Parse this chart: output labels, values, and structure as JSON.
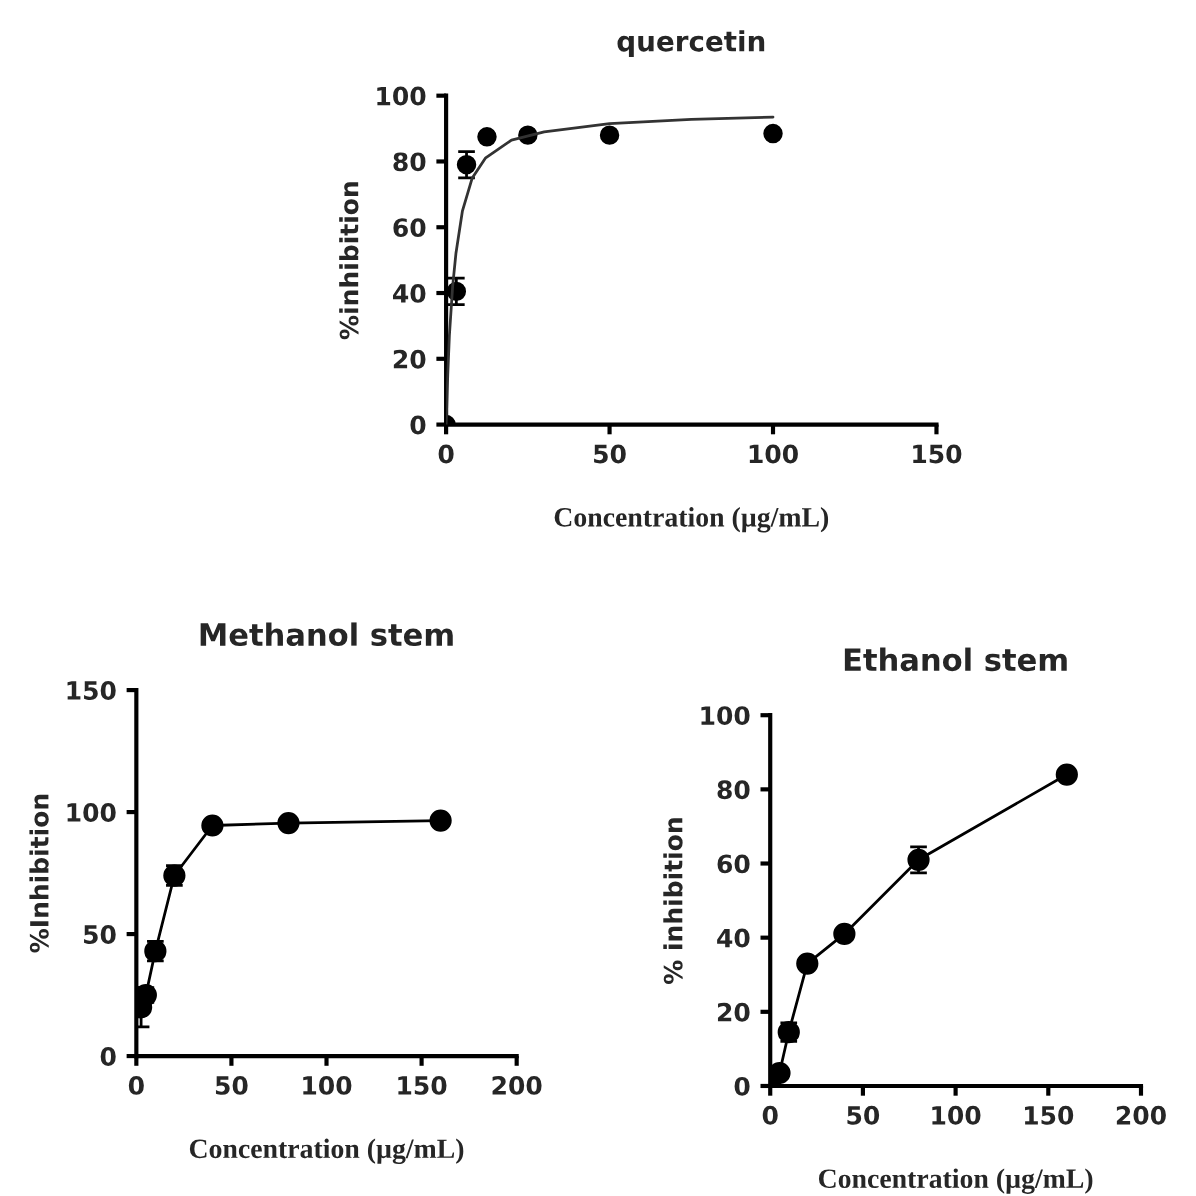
{
  "chart_data": [
    {
      "type": "scatter",
      "title": "quercetin",
      "xlabel": "Concentration (µg/mL)",
      "ylabel": "%inhibition",
      "xlim": [
        0,
        150
      ],
      "xticks": [
        0,
        50,
        100,
        150
      ],
      "ylim": [
        0,
        100
      ],
      "yticks": [
        0,
        20,
        40,
        60,
        80,
        100
      ],
      "marker": "circle",
      "series": [
        {
          "type": "scatter",
          "color": "#000000",
          "x": [
            0,
            3.125,
            6.25,
            12.5,
            25,
            50,
            100
          ],
          "values": [
            0,
            40.5,
            79,
            87.5,
            88,
            88,
            88.5
          ],
          "errors": [
            null,
            4,
            4,
            null,
            null,
            null,
            null
          ]
        },
        {
          "type": "line",
          "color": "#333333",
          "marker": "none",
          "x": [
            0,
            0.5,
            1,
            2,
            3,
            5,
            8,
            12,
            20,
            30,
            50,
            75,
            100
          ],
          "values": [
            0,
            15,
            27,
            42,
            52,
            65,
            75,
            81,
            86.5,
            89,
            91.5,
            92.8,
            93.5
          ]
        }
      ]
    },
    {
      "type": "line",
      "title": "Methanol stem",
      "xlabel": "Concentration (µg/mL)",
      "ylabel": "%Inhibition",
      "xlim": [
        0,
        200
      ],
      "xticks": [
        0,
        50,
        100,
        150,
        200
      ],
      "ylim": [
        0,
        150
      ],
      "yticks": [
        0,
        50,
        100,
        150
      ],
      "marker": "circle",
      "line_style": "solid",
      "series": [
        {
          "color": "#000000",
          "x": [
            2.5,
            5,
            10,
            20,
            40,
            80,
            160
          ],
          "values": [
            20,
            25,
            43,
            74,
            94.5,
            95.5,
            96.5
          ],
          "errors": [
            8,
            3,
            4,
            4,
            null,
            null,
            null
          ]
        }
      ]
    },
    {
      "type": "line",
      "title": "Ethanol stem",
      "xlabel": "Concentration (µg/mL)",
      "ylabel": "% inhibition",
      "xlim": [
        0,
        200
      ],
      "xticks": [
        0,
        50,
        100,
        150,
        200
      ],
      "ylim": [
        0,
        100
      ],
      "yticks": [
        0,
        20,
        40,
        60,
        80,
        100
      ],
      "marker": "circle",
      "line_style": "solid",
      "series": [
        {
          "color": "#000000",
          "x": [
            0,
            5,
            10,
            20,
            40,
            80,
            160
          ],
          "values": [
            0,
            3.5,
            14.5,
            33,
            41,
            61,
            84
          ],
          "errors": [
            null,
            null,
            2.5,
            null,
            null,
            3.5,
            null
          ]
        }
      ]
    }
  ]
}
